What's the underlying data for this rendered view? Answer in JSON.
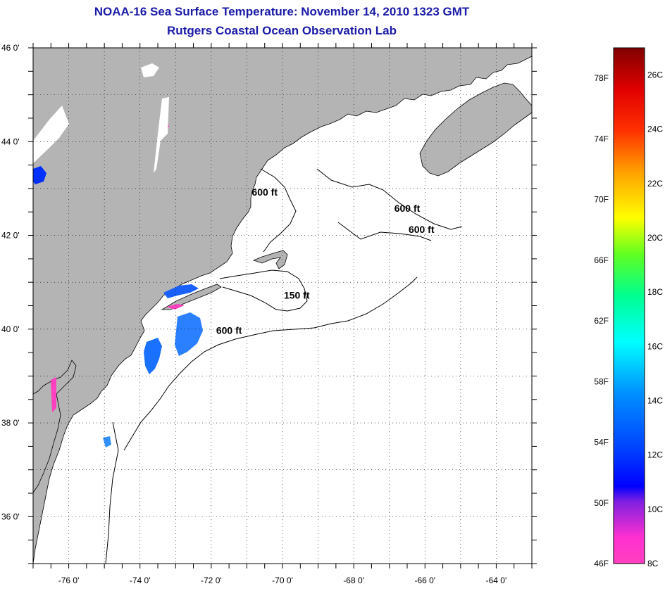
{
  "title": "NOAA-16 Sea Surface Temperature:  November 14, 2010 1323 GMT",
  "subtitle": "Rutgers Coastal Ocean Observation Lab",
  "map": {
    "lat_range": [
      35,
      46
    ],
    "lon_range": [
      -77,
      -63
    ],
    "lat_ticks": [
      {
        "value": 46,
        "label": "46 0'"
      },
      {
        "value": 44,
        "label": "44 0'"
      },
      {
        "value": 42,
        "label": "42 0'"
      },
      {
        "value": 40,
        "label": "40 0'"
      },
      {
        "value": 38,
        "label": "38 0'"
      },
      {
        "value": 36,
        "label": "36 0'"
      }
    ],
    "lon_ticks": [
      {
        "value": -76,
        "label": "-76 0'"
      },
      {
        "value": -74,
        "label": "-74 0'"
      },
      {
        "value": -72,
        "label": "-72 0'"
      },
      {
        "value": -70,
        "label": "-70 0'"
      },
      {
        "value": -68,
        "label": "-68 0'"
      },
      {
        "value": -66,
        "label": "-66 0'"
      },
      {
        "value": -64,
        "label": "-64 0'"
      }
    ],
    "grid": true,
    "land_color": "#b4b4b4",
    "ocean_color": "#ffffff",
    "contour_labels": [
      {
        "text": "600 ft",
        "lon": -70.5,
        "lat": 42.85
      },
      {
        "text": "600 ft",
        "lon": -66.5,
        "lat": 42.5
      },
      {
        "text": "600 ft",
        "lon": -66.1,
        "lat": 42.05
      },
      {
        "text": "150 ft",
        "lon": -69.6,
        "lat": 40.65
      },
      {
        "text": "600 ft",
        "lon": -71.5,
        "lat": 39.9
      }
    ]
  },
  "colorbar": {
    "fahrenheit_labels": [
      "46F",
      "50F",
      "54F",
      "58F",
      "62F",
      "66F",
      "70F",
      "74F",
      "78F"
    ],
    "celsius_labels": [
      "8C",
      "10C",
      "12C",
      "14C",
      "16C",
      "18C",
      "20C",
      "22C",
      "24C",
      "26C"
    ],
    "colors": [
      "#ff40c0",
      "#8020e0",
      "#0000ff",
      "#0090ff",
      "#00ffff",
      "#40ff40",
      "#ffff00",
      "#ff9000",
      "#ff0000",
      "#800000"
    ]
  }
}
